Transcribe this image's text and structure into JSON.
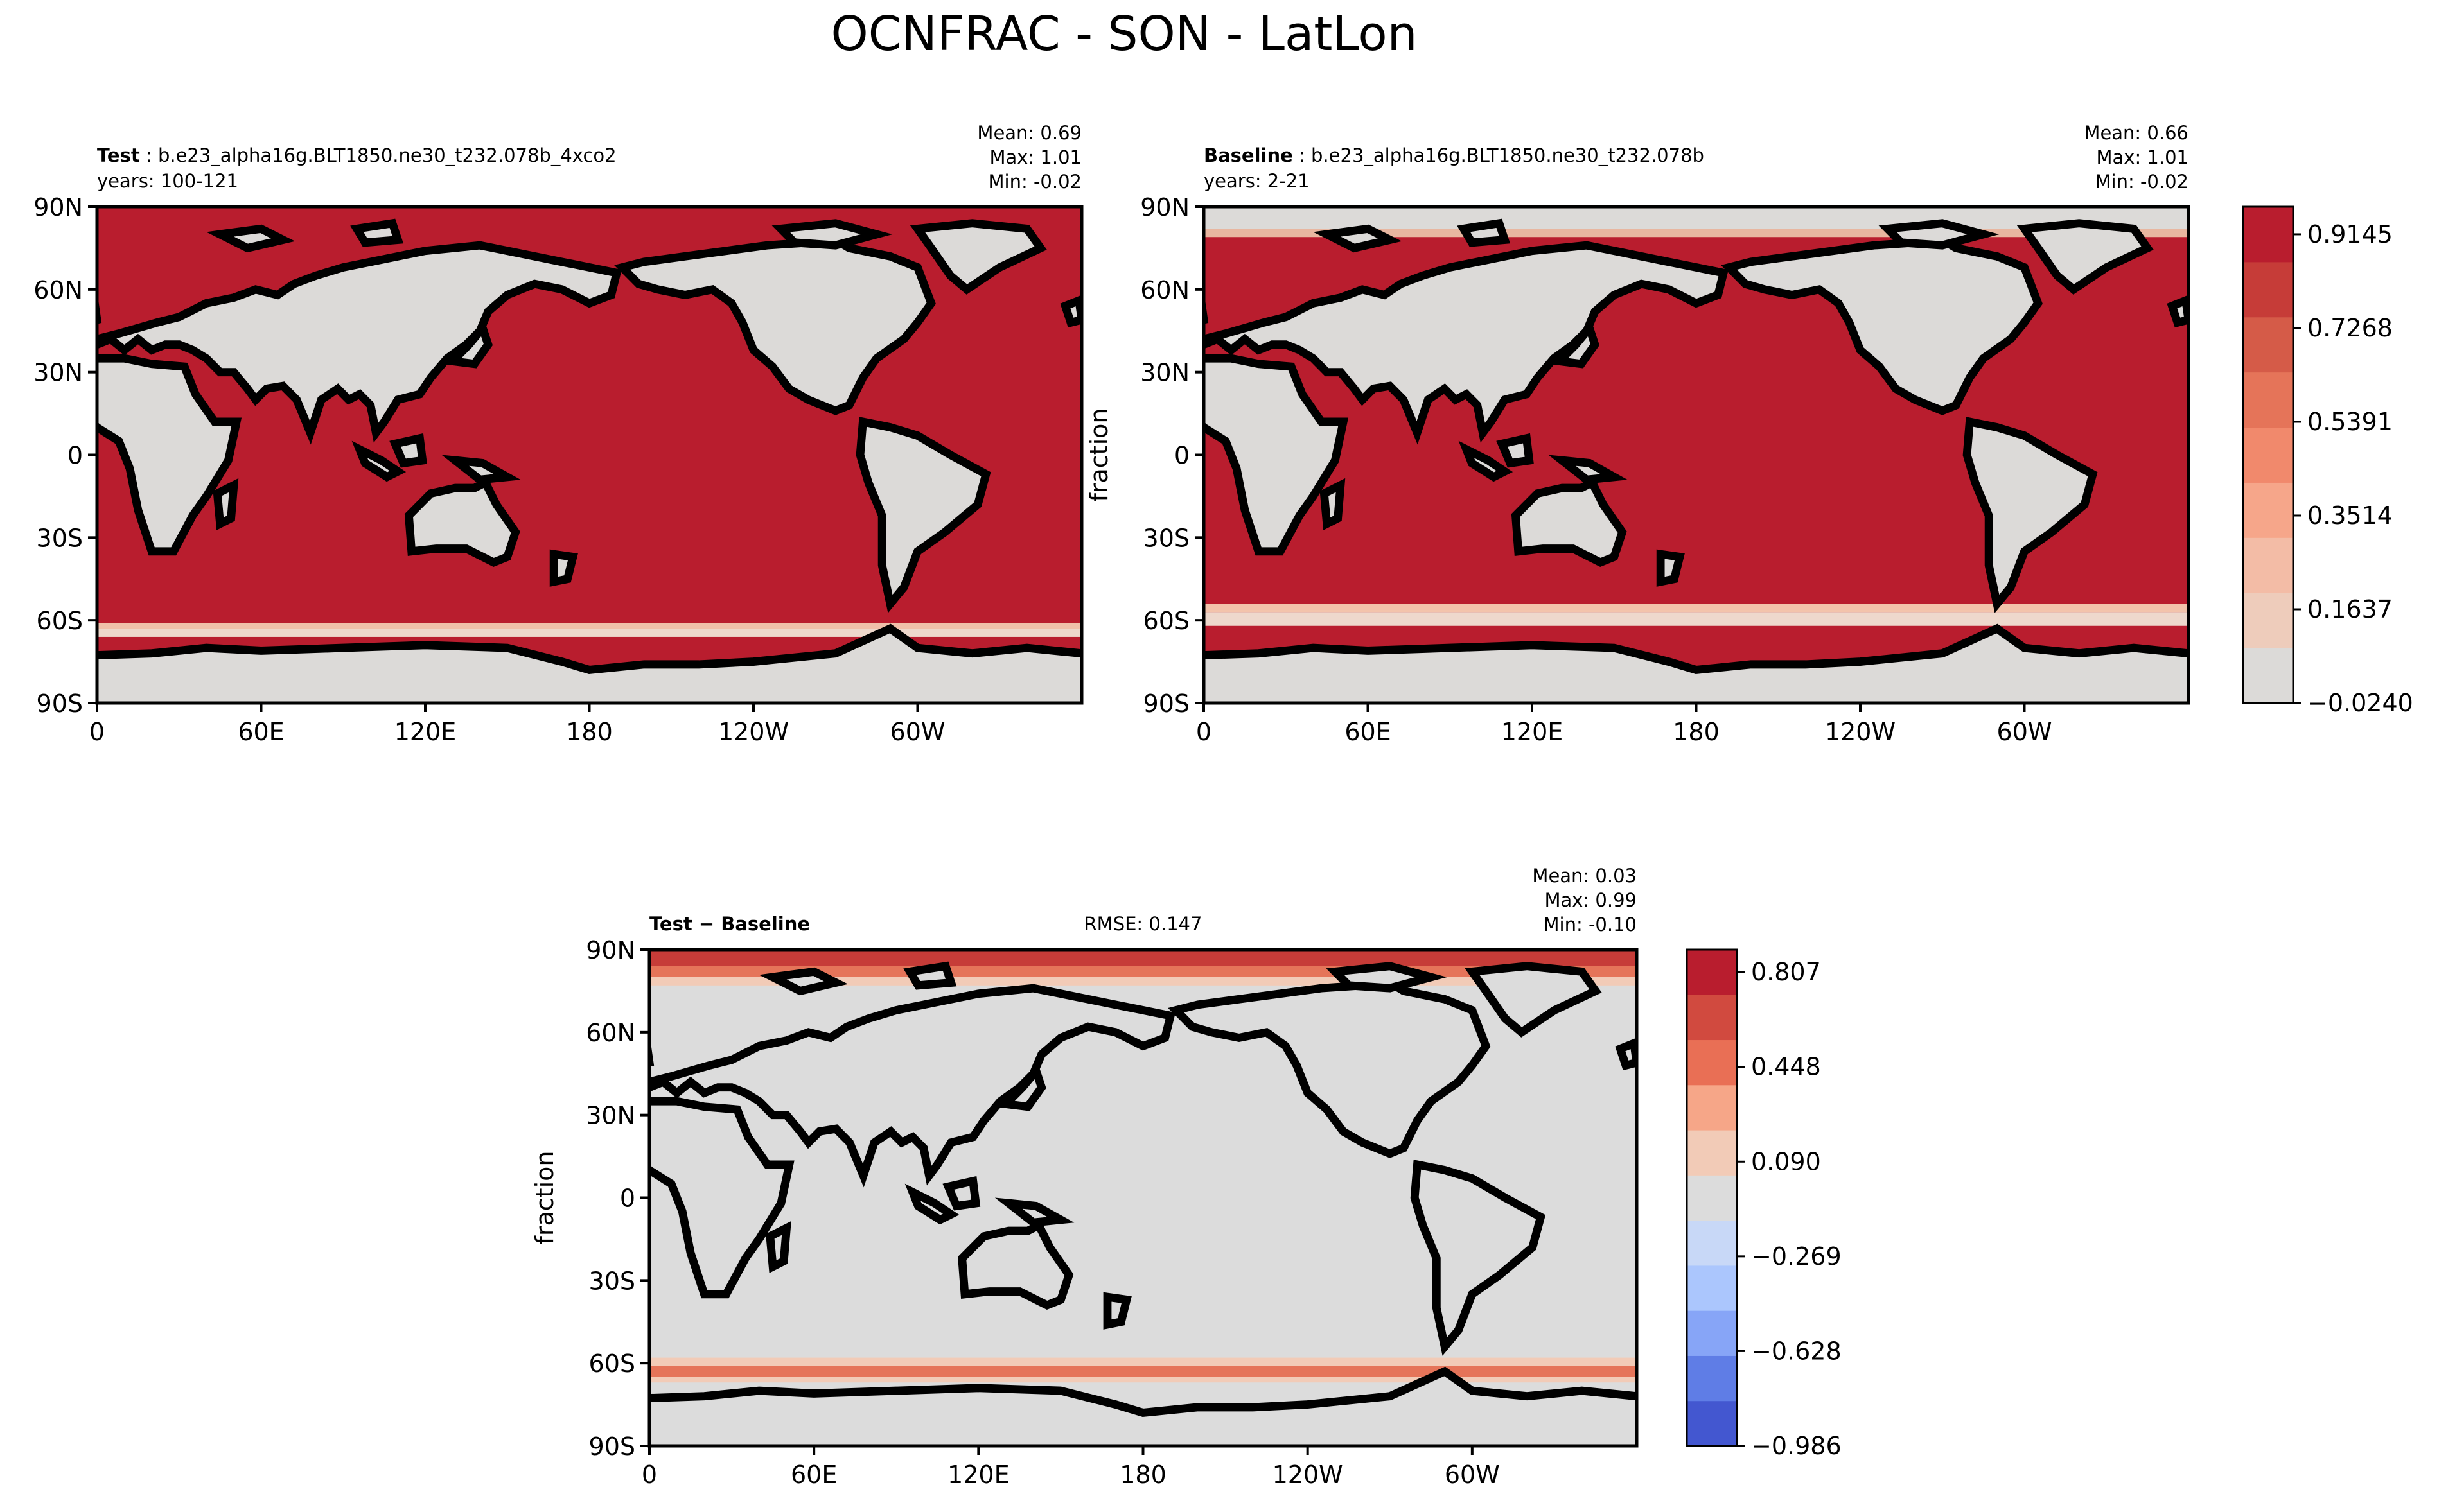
{
  "figure": {
    "title": "OCNFRAC - SON - LatLon"
  },
  "palette": {
    "land": "#dcdad8",
    "ocean_red": "#b91d2e",
    "diff_neutral": "#dcdcdc",
    "coast": "#000000"
  },
  "chart_data": [
    {
      "type": "heatmap",
      "panel": "test",
      "title_bold": "Test",
      "title_rest": "b.e23_alpha16g.BLT1850.ne30_t232.078b_4xco2",
      "subtitle": "years: 100-121",
      "stats": [
        "Mean:  0.69",
        "Max:  1.01",
        "Min: -0.02"
      ],
      "x_ticks": [
        "0",
        "60E",
        "120E",
        "180",
        "120W",
        "60W"
      ],
      "y_ticks": [
        "90N",
        "60N",
        "30N",
        "0",
        "30S",
        "60S",
        "90S"
      ],
      "xlim": [
        0,
        360
      ],
      "ylim": [
        -90,
        90
      ],
      "ylabel": ""
    },
    {
      "type": "heatmap",
      "panel": "baseline",
      "title_bold": "Baseline",
      "title_rest": "b.e23_alpha16g.BLT1850.ne30_t232.078b",
      "subtitle": "years: 2-21",
      "stats": [
        "Mean:  0.66",
        "Max:  1.01",
        "Min: -0.02"
      ],
      "x_ticks": [
        "0",
        "60E",
        "120E",
        "180",
        "120W",
        "60W"
      ],
      "y_ticks": [
        "90N",
        "60N",
        "30N",
        "0",
        "30S",
        "60S",
        "90S"
      ],
      "xlim": [
        0,
        360
      ],
      "ylim": [
        -90,
        90
      ],
      "ylabel": "fraction"
    },
    {
      "type": "heatmap",
      "panel": "diff",
      "title_bold": "Test − Baseline",
      "title_rest": "",
      "center_text": "RMSE: 0.147",
      "subtitle": "",
      "stats": [
        "Mean:  0.03",
        "Max:  0.99",
        "Min: -0.10"
      ],
      "x_ticks": [
        "0",
        "60E",
        "120E",
        "180",
        "120W",
        "60W"
      ],
      "y_ticks": [
        "90N",
        "60N",
        "30N",
        "0",
        "30S",
        "60S",
        "90S"
      ],
      "xlim": [
        0,
        360
      ],
      "ylim": [
        -90,
        90
      ],
      "ylabel": "fraction"
    }
  ],
  "colorbars": {
    "main": {
      "labels": [
        "0.9145",
        "0.7268",
        "0.5391",
        "0.3514",
        "0.1637",
        "−0.0240"
      ],
      "colors": [
        "#dcdad8",
        "#eeccbb",
        "#f3bca6",
        "#f6a68a",
        "#f1896c",
        "#e57459",
        "#d55b48",
        "#c63c38",
        "#b91d2e"
      ]
    },
    "diff": {
      "labels": [
        "0.807",
        "0.448",
        "0.090",
        "−0.269",
        "−0.628",
        "−0.986"
      ],
      "colors": [
        "#4357d0",
        "#5f7de6",
        "#87a5f7",
        "#abc6fd",
        "#c8d8f7",
        "#dcdcdc",
        "#f2cbb7",
        "#f6a688",
        "#e96f55",
        "#d14a3f",
        "#b91d2e"
      ]
    }
  }
}
